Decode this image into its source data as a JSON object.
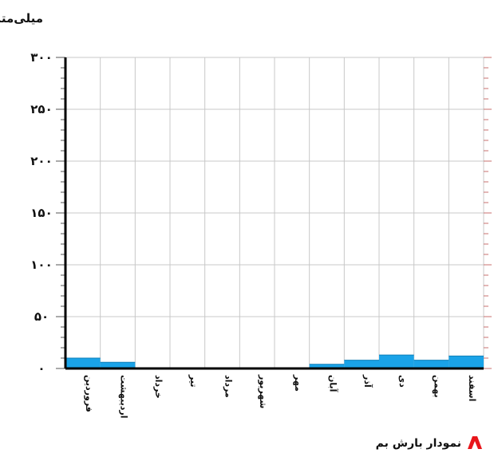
{
  "chart_data": {
    "type": "bar",
    "title": "",
    "ylabel": "میلی‌متر",
    "xlabel": "",
    "categories": [
      "فروردین",
      "اردیبهشت",
      "خرداد",
      "تیر",
      "مرداد",
      "شهریور",
      "مهر",
      "آبان",
      "آذر",
      "دی",
      "بهمن",
      "اسفند"
    ],
    "values": [
      10,
      6,
      0,
      0,
      0,
      0,
      0,
      4,
      8,
      13,
      8,
      12
    ],
    "ylim": [
      0,
      300
    ],
    "yticks": [
      0,
      50,
      100,
      150,
      200,
      250,
      300
    ],
    "ytick_labels": [
      "۰",
      "۵۰",
      "۱۰۰",
      "۱۵۰",
      "۲۰۰",
      "۲۵۰",
      "۳۰۰"
    ],
    "grid": true,
    "bar_color": "#1aa3e8",
    "marker_color": "#e8161b"
  },
  "caption": {
    "text": "نمودار بارش بم"
  }
}
